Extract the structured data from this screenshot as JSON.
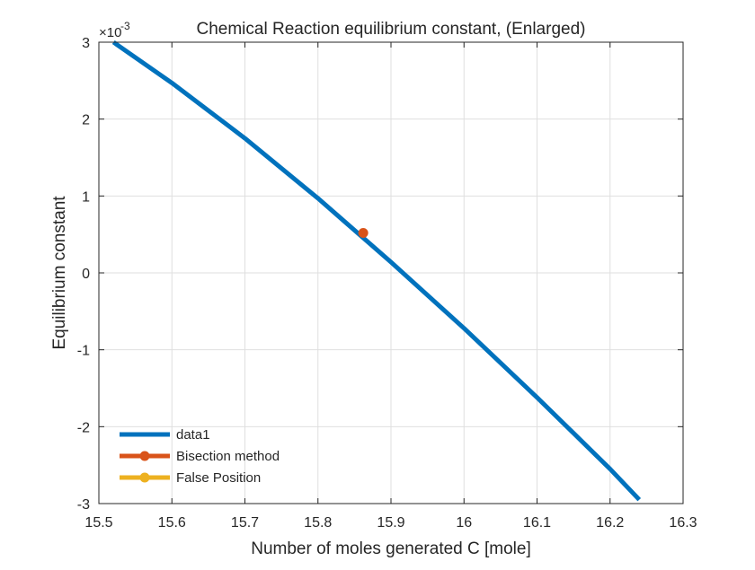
{
  "chart_data": {
    "type": "line",
    "title": "Chemical Reaction equilibrium constant, (Enlarged)",
    "xlabel": "Number of moles generated C [mole]",
    "ylabel": "Equilibrium constant",
    "y_exponent_prefix": "×10",
    "y_exponent_value": "-3",
    "xlim": [
      15.5,
      16.3
    ],
    "ylim": [
      -3,
      3
    ],
    "grid": true,
    "legend_position": "bottom-left",
    "x_ticks": [
      15.5,
      15.6,
      15.7,
      15.8,
      15.9,
      16.0,
      16.1,
      16.2,
      16.3
    ],
    "x_tick_labels": [
      "15.5",
      "15.6",
      "15.7",
      "15.8",
      "15.9",
      "16",
      "16.1",
      "16.2",
      "16.3"
    ],
    "y_ticks": [
      -3,
      -2,
      -1,
      0,
      1,
      2,
      3
    ],
    "y_tick_labels": [
      "-3",
      "-2",
      "-1",
      "0",
      "1",
      "2",
      "3"
    ],
    "series": [
      {
        "name": "data1",
        "color": "#0072BD",
        "x": [
          15.52,
          15.6,
          15.7,
          15.8,
          15.9,
          16.0,
          16.1,
          16.2,
          16.24
        ],
        "y": [
          3.0,
          2.47,
          1.75,
          0.97,
          0.14,
          -0.72,
          -1.62,
          -2.55,
          -2.95
        ]
      },
      {
        "name": "Bisection method",
        "color": "#D95319",
        "x": [
          15.862
        ],
        "y": [
          0.52
        ]
      },
      {
        "name": "False Position",
        "color": "#EDB120",
        "x": [],
        "y": []
      }
    ]
  }
}
